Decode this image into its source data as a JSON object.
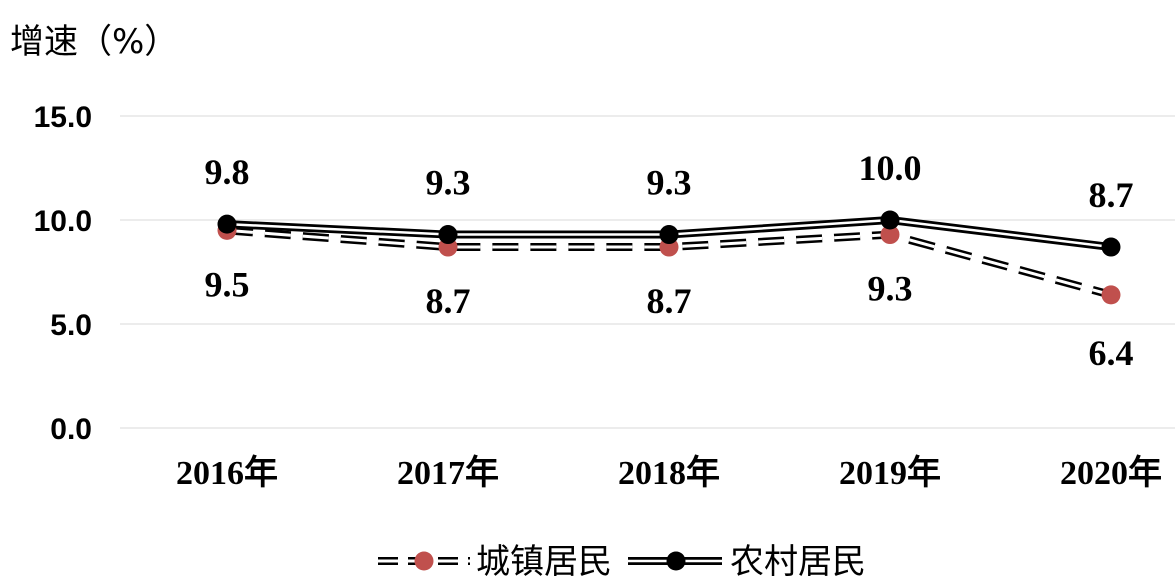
{
  "chart_data": {
    "type": "line",
    "ylabel": "增速（%）",
    "categories": [
      "2016年",
      "2017年",
      "2018年",
      "2019年",
      "2020年"
    ],
    "ylim": [
      0,
      15
    ],
    "yticks": [
      "0.0",
      "5.0",
      "10.0",
      "15.0"
    ],
    "ytick_values": [
      0,
      5,
      10,
      15
    ],
    "grid": true,
    "legend_position": "bottom",
    "series": [
      {
        "name": "城镇居民",
        "values": [
          9.5,
          8.7,
          8.7,
          9.3,
          6.4
        ],
        "labels": [
          "9.5",
          "8.7",
          "8.7",
          "9.3",
          "6.4"
        ],
        "line_style": "dashed-double",
        "marker_color": "#c0504d",
        "label_position": "below"
      },
      {
        "name": "农村居民",
        "values": [
          9.8,
          9.3,
          9.3,
          10.0,
          8.7
        ],
        "labels": [
          "9.8",
          "9.3",
          "9.3",
          "10.0",
          "8.7"
        ],
        "line_style": "solid-double",
        "marker_color": "#000000",
        "label_position": "above"
      }
    ]
  }
}
